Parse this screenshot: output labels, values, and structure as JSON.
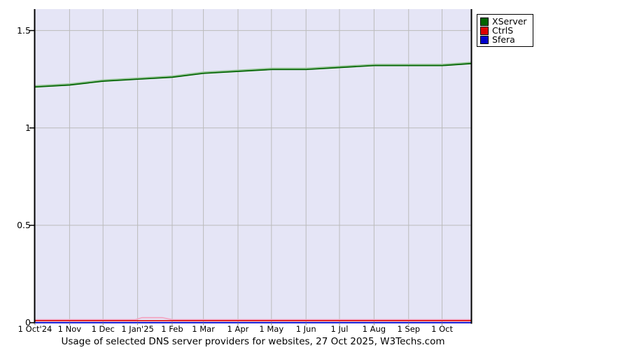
{
  "title": "Usage of selected DNS server providers for websites, 27 Oct 2025, W3Techs.com",
  "legend": {
    "items": [
      {
        "label": "XServer"
      },
      {
        "label": "CtrlS"
      },
      {
        "label": "Sfera"
      }
    ]
  },
  "colors": {
    "plot_background": "#e5e5f6",
    "gridline": "#bbbbbb",
    "axis": "#000000",
    "xserver_green": "#006400",
    "xserver_light_green": "#8fc08f",
    "ctrls_red": "#dd0000",
    "ctrls_light_pink": "#f2a8c4",
    "sfera_blue": "#0000cc"
  },
  "chart_data": {
    "type": "line",
    "title": "Usage of selected DNS server providers for websites, 27 Oct 2025, W3Techs.com",
    "xlabel": "",
    "ylabel": "",
    "x_tick_labels": [
      "1 Oct'24",
      "1 Nov",
      "1 Dec",
      "1 Jan'25",
      "1 Feb",
      "1 Mar",
      "1 Apr",
      "1 May",
      "1 Jun",
      "1 Jul",
      "1 Aug",
      "1 Sep",
      "1 Oct"
    ],
    "x_tick_days": [
      0,
      31,
      61,
      92,
      123,
      151,
      182,
      212,
      243,
      273,
      304,
      335,
      365
    ],
    "x_total_days": 391,
    "y_tick_labels": [
      "0",
      "0.5",
      "1",
      "1.5"
    ],
    "y_ticks": [
      0,
      0.5,
      1,
      1.5
    ],
    "ylim": [
      0,
      1.61
    ],
    "grid": true,
    "legend_position": "outside-top-right",
    "series": [
      {
        "name": "XServer",
        "color": "#006400",
        "light_color": "#8fc08f",
        "x_days": [
          0,
          31,
          61,
          92,
          123,
          151,
          182,
          212,
          243,
          273,
          304,
          335,
          365,
          391
        ],
        "values": [
          1.21,
          1.22,
          1.24,
          1.25,
          1.26,
          1.28,
          1.29,
          1.3,
          1.3,
          1.31,
          1.32,
          1.32,
          1.32,
          1.33
        ]
      },
      {
        "name": "CtrlS",
        "color": "#dd0000",
        "light_color": "#f2a8c4",
        "x_days": [
          0,
          31,
          61,
          92,
          123,
          151,
          182,
          212,
          243,
          273,
          304,
          335,
          365,
          391
        ],
        "values": [
          0.01,
          0.01,
          0.01,
          0.01,
          0.01,
          0.01,
          0.01,
          0.01,
          0.01,
          0.01,
          0.01,
          0.01,
          0.01,
          0.01
        ],
        "light_line": {
          "x_days": [
            0,
            90,
            96,
            114,
            123,
            391
          ],
          "values": [
            0.01,
            0.01,
            0.02,
            0.02,
            0.01,
            0.01
          ]
        }
      },
      {
        "name": "Sfera",
        "color": "#0000cc",
        "x_days": [
          0,
          391
        ],
        "values": [
          0,
          0
        ]
      }
    ]
  }
}
